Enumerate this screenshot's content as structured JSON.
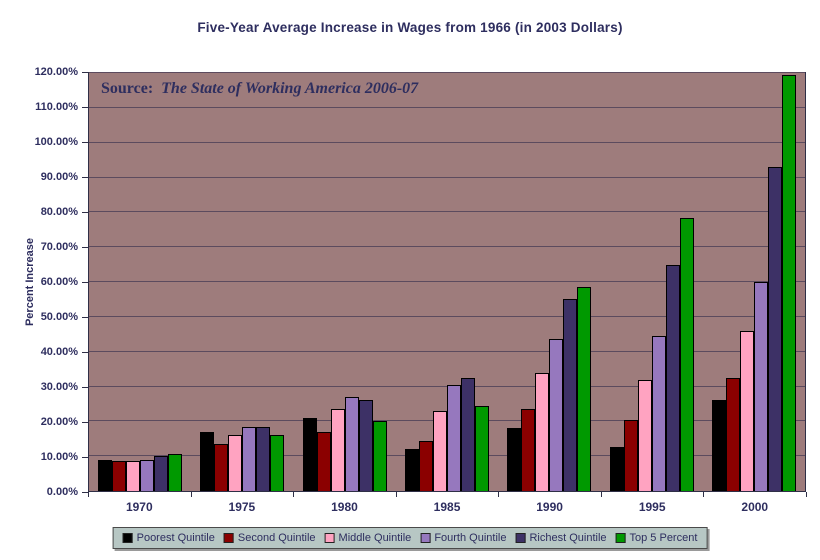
{
  "colors": {
    "text": "#2e2e5f",
    "plot_background": "#9e7c7c",
    "gridline": "#5c4b5e",
    "legend_background": "#b7c7c4",
    "outer_background": "#ffffff"
  },
  "chart_data": {
    "type": "bar",
    "title": "Five-Year Average Increase in Wages from 1966 (in 2003 Dollars)",
    "ylabel": "Percent Increase",
    "xlabel": "",
    "ylim": [
      0,
      120
    ],
    "grid": true,
    "legend_position": "bottom",
    "source_label": "Source:",
    "source_text": "The State of Working America 2006-07",
    "y_tick_labels": [
      "0.00%",
      "10.00%",
      "20.00%",
      "30.00%",
      "40.00%",
      "50.00%",
      "60.00%",
      "70.00%",
      "80.00%",
      "90.00%",
      "100.00%",
      "110.00%",
      "120.00%"
    ],
    "y_tick_values": [
      0,
      10,
      20,
      30,
      40,
      50,
      60,
      70,
      80,
      90,
      100,
      110,
      120
    ],
    "categories": [
      "1970",
      "1975",
      "1980",
      "1985",
      "1990",
      "1995",
      "2000"
    ],
    "series": [
      {
        "name": "Poorest Quintile",
        "color": "#000000",
        "values": [
          9,
          17,
          21,
          12,
          18,
          12.5,
          26
        ]
      },
      {
        "name": "Second Quintile",
        "color": "#8b0000",
        "values": [
          8.5,
          13.5,
          17,
          14.5,
          23.5,
          20.5,
          32.5
        ]
      },
      {
        "name": "Middle Quintile",
        "color": "#ffa3c1",
        "values": [
          8.5,
          16,
          23.5,
          23,
          34,
          32,
          46
        ]
      },
      {
        "name": "Fourth Quintile",
        "color": "#9678be",
        "values": [
          9,
          18.5,
          27,
          30.5,
          43.5,
          44.5,
          60
        ]
      },
      {
        "name": "Richest Quintile",
        "color": "#3d3166",
        "values": [
          10,
          18.5,
          26,
          32.5,
          55,
          65,
          93
        ]
      },
      {
        "name": "Top 5 Percent",
        "color": "#009900",
        "values": [
          10.5,
          16,
          20,
          24.5,
          58.5,
          78.5,
          119.5
        ]
      }
    ]
  }
}
